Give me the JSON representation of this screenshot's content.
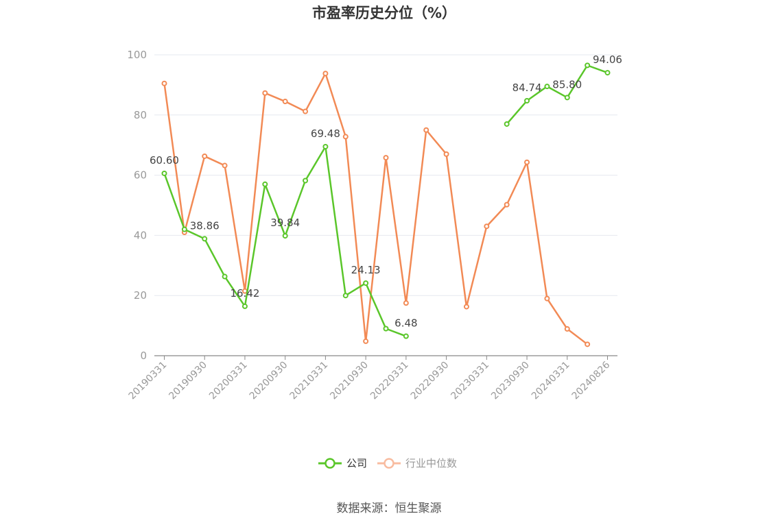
{
  "chart_data": {
    "type": "line",
    "title": "市盈率历史分位（%）",
    "source": "数据来源：恒生聚源",
    "ylim": [
      0,
      100
    ],
    "yticks": [
      0,
      20,
      40,
      60,
      80,
      100
    ],
    "grid": true,
    "legend_position": "bottom-center",
    "x_tick_labels": [
      "20190331",
      "20190930",
      "20200331",
      "20200930",
      "20210331",
      "20210930",
      "20220331",
      "20220930",
      "20230331",
      "20230930",
      "20240331",
      "20240826"
    ],
    "x": [
      "20190331",
      "20190630",
      "20190930",
      "20191231",
      "20200331",
      "20200630",
      "20200930",
      "20201231",
      "20210331",
      "20210630",
      "20210930",
      "20211231",
      "20220331",
      "20220630",
      "20220930",
      "20221231",
      "20230331",
      "20230630",
      "20230930",
      "20231231",
      "20240331",
      "20240630",
      "20240826"
    ],
    "series": [
      {
        "name": "公司",
        "color": "#5ac62a",
        "values": [
          60.6,
          42.0,
          38.86,
          26.3,
          16.42,
          57.0,
          39.84,
          58.2,
          69.48,
          20.0,
          24.13,
          9.0,
          6.48,
          null,
          null,
          null,
          null,
          77.0,
          84.74,
          89.5,
          85.8,
          96.5,
          94.06
        ],
        "labels": [
          {
            "index": 0,
            "text": "60.60"
          },
          {
            "index": 2,
            "text": "38.86"
          },
          {
            "index": 4,
            "text": "16.42"
          },
          {
            "index": 6,
            "text": "39.84"
          },
          {
            "index": 8,
            "text": "69.48"
          },
          {
            "index": 10,
            "text": "24.13"
          },
          {
            "index": 12,
            "text": "6.48"
          },
          {
            "index": 18,
            "text": "84.74"
          },
          {
            "index": 20,
            "text": "85.80"
          },
          {
            "index": 22,
            "text": "94.06"
          }
        ]
      },
      {
        "name": "行业中位数",
        "color": "#f28a55",
        "values": [
          90.5,
          41.0,
          66.3,
          63.2,
          21.5,
          87.3,
          84.5,
          81.2,
          93.8,
          72.8,
          4.8,
          65.8,
          17.5,
          75.0,
          67.0,
          16.3,
          43.0,
          50.2,
          64.3,
          19.0,
          8.9,
          3.8,
          null
        ]
      }
    ],
    "legend_colors": {
      "active_text": "#333333",
      "inactive_text": "#999999",
      "inactive_marker": "#f8bca0"
    }
  }
}
